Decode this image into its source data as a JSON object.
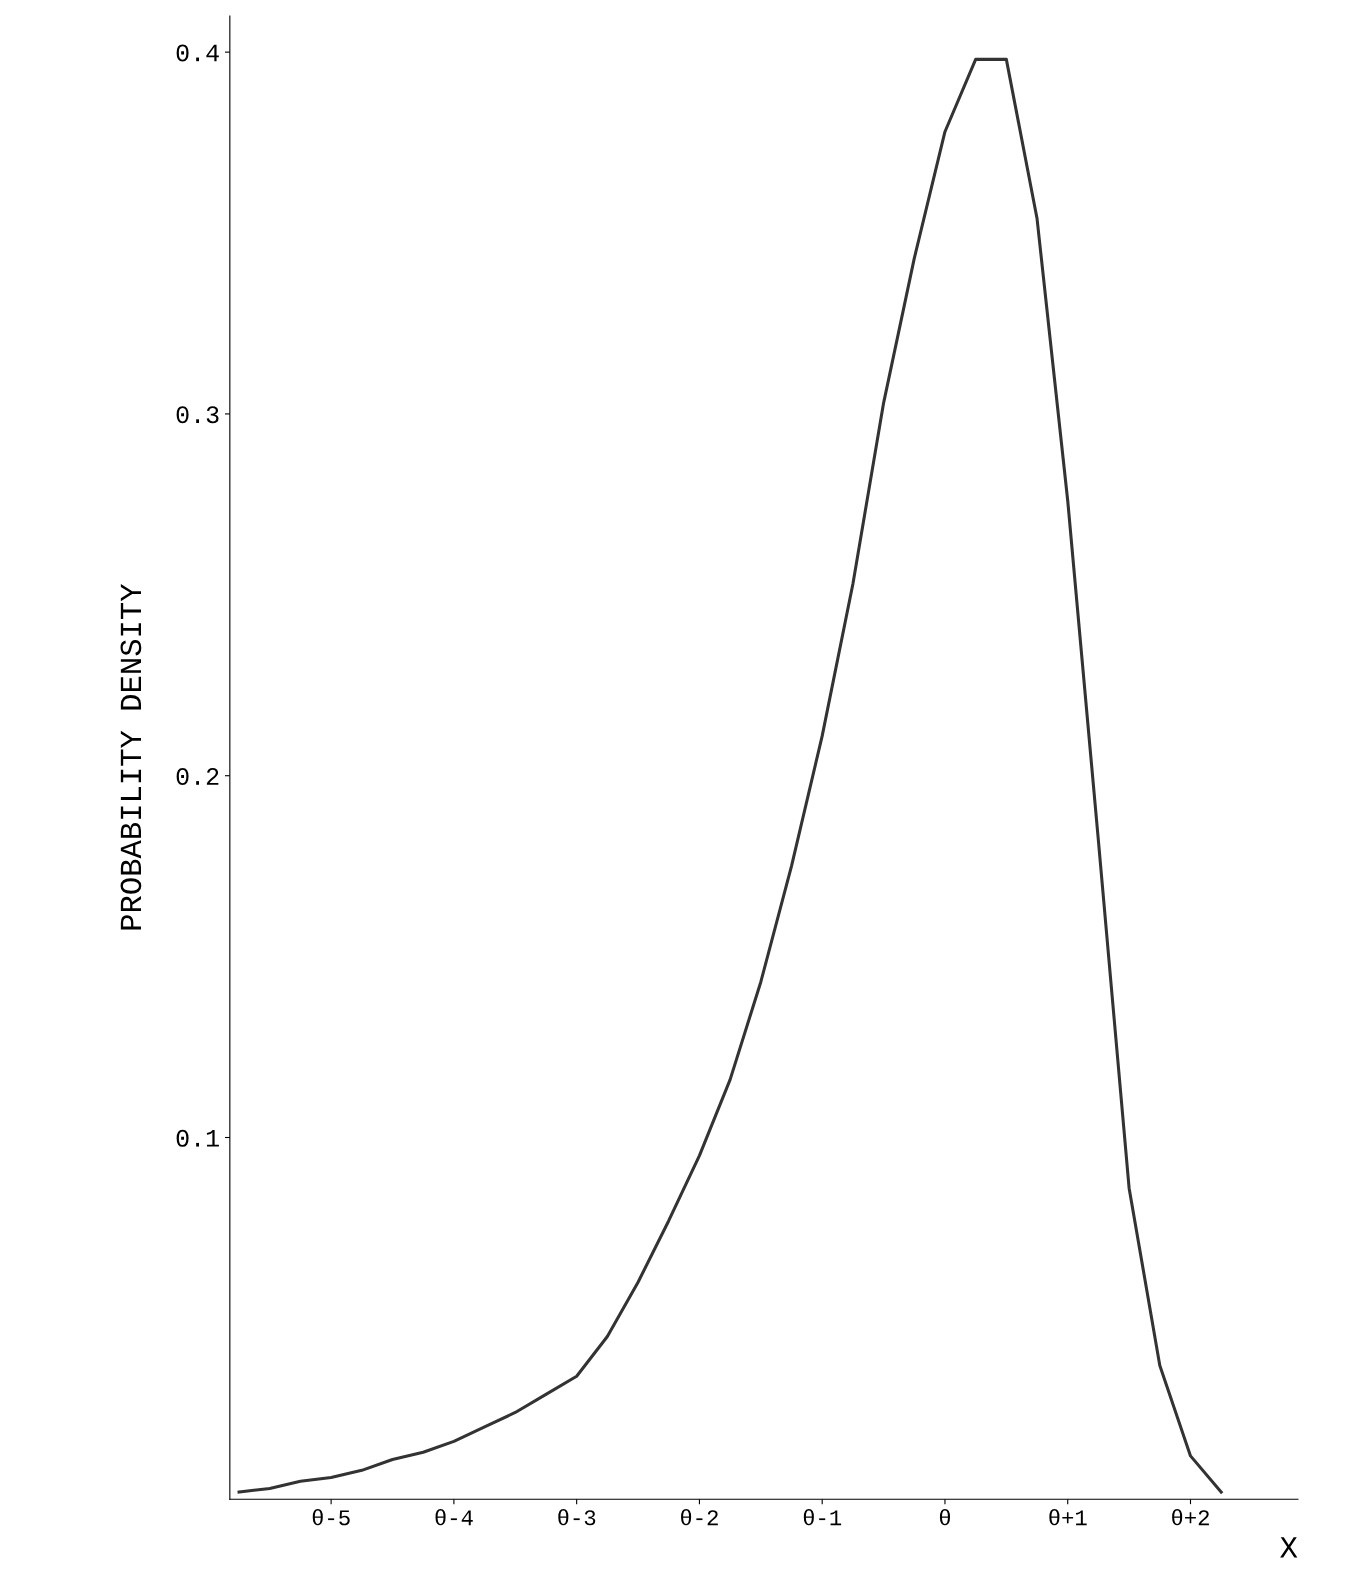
{
  "chart_data": {
    "type": "line",
    "xlabel": "X",
    "ylabel": "PROBABILITY DENSITY",
    "categories": [
      null,
      null,
      null,
      "θ-5",
      null,
      null,
      null,
      "θ-4",
      null,
      null,
      null,
      "θ-3",
      null,
      null,
      null,
      "θ-2",
      null,
      null,
      null,
      "θ-1",
      null,
      null,
      null,
      "θ",
      null,
      null,
      null,
      "θ+1",
      null,
      null,
      null,
      "θ+2",
      null
    ],
    "series": [
      {
        "color": "#333333",
        "values": [
          0.002,
          0.003,
          0.005,
          0.006,
          0.008,
          0.011,
          0.013,
          0.016,
          0.02,
          0.024,
          0.029,
          0.034,
          0.045,
          0.06,
          0.077,
          0.095,
          0.116,
          0.143,
          0.175,
          0.211,
          0.253,
          0.303,
          0.343,
          0.378,
          0.398,
          0.398,
          0.354,
          0.276,
          0.182,
          0.086,
          0.037,
          0.012,
          0.002
        ]
      }
    ],
    "ylim": [
      0,
      0.41
    ],
    "yticks": [
      0.1,
      0.2,
      0.3,
      0.4
    ],
    "grid": false,
    "legend": false,
    "marker": "none",
    "line_style": "solid"
  }
}
